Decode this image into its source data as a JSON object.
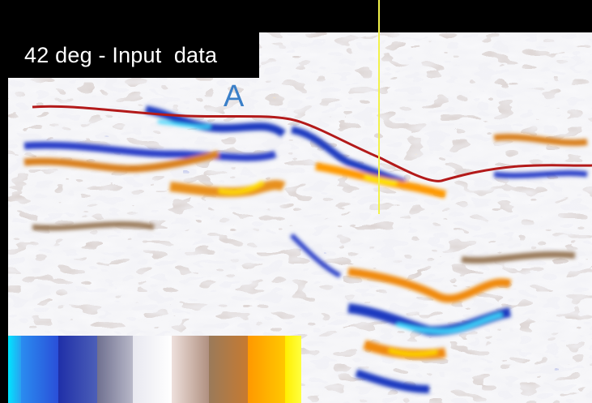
{
  "panel": {
    "title": "42 deg - Input  data",
    "horizon_label": "A"
  },
  "colors": {
    "background": "#000000",
    "horizon_line": "#b31a1a",
    "cursor_line": "#f2f24a",
    "label": "#3a7fc8"
  },
  "colorbar": {
    "segments": [
      {
        "from": "#00e5ff",
        "to": "#2aa0f0"
      },
      {
        "from": "#2a8cf0",
        "to": "#2a4fd8"
      },
      {
        "from": "#1f2fa8",
        "to": "#4c5fb8"
      },
      {
        "from": "#6f7090",
        "to": "#b8b8c8"
      },
      {
        "from": "#e8e8f0",
        "to": "#ffffff"
      },
      {
        "from": "#eee0dc",
        "to": "#b09080"
      },
      {
        "from": "#9a7a5a",
        "to": "#c77a30"
      },
      {
        "from": "#ff9800",
        "to": "#ffc800"
      },
      {
        "from": "#ffee00",
        "to": "#ffff40"
      }
    ]
  }
}
